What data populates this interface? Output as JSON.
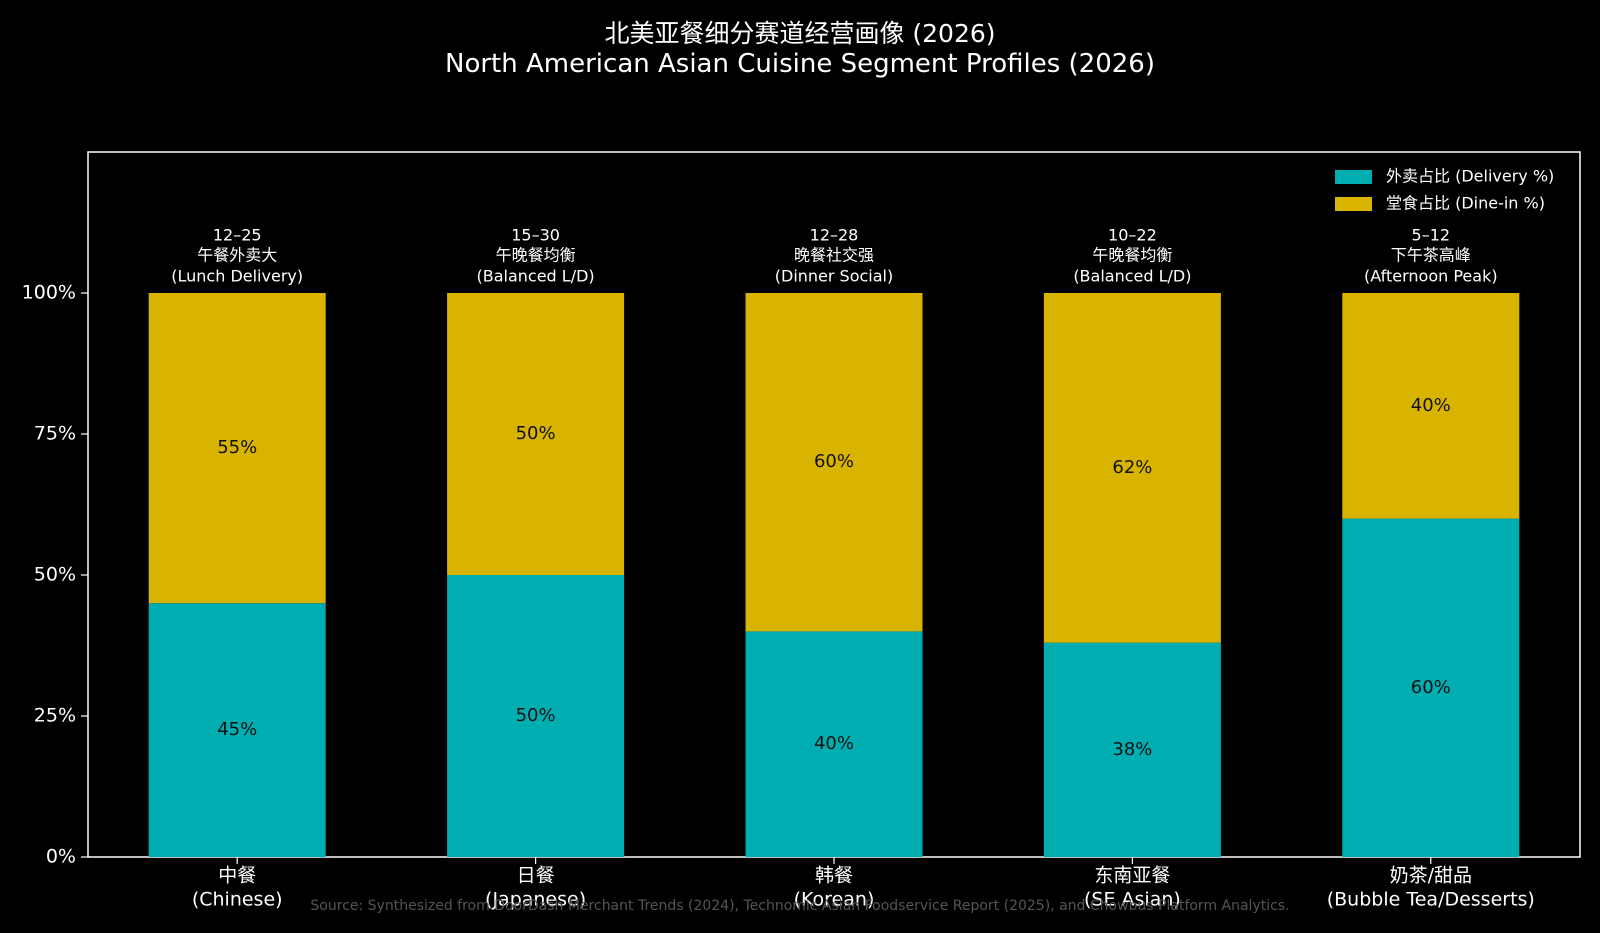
{
  "title_cn": "北美亚餐细分赛道经营画像 (2026)",
  "title_en": "North American Asian Cuisine Segment Profiles (2026)",
  "source": "Source: Synthesized from DoorDash Merchant Trends (2024), Technomic Asian Foodservice Report (2025), and Chowbus Platform Analytics.",
  "chart_data": {
    "type": "bar",
    "stacked": true,
    "categories": [
      [
        "中餐",
        "(Chinese)"
      ],
      [
        "日餐",
        "(Japanese)"
      ],
      [
        "韩餐",
        "(Korean)"
      ],
      [
        "东南亚餐",
        "(SE Asian)"
      ],
      [
        "奶茶/甜品",
        "(Bubble Tea/Desserts)"
      ]
    ],
    "series": [
      {
        "name": "外卖占比 (Delivery %)",
        "color": "#00adb0",
        "values": [
          45,
          50,
          40,
          38,
          60
        ],
        "labels": [
          "45%",
          "50%",
          "40%",
          "38%",
          "60%"
        ]
      },
      {
        "name": "堂食占比 (Dine-in %)",
        "color": "#d8b300",
        "values": [
          55,
          50,
          60,
          62,
          40
        ],
        "labels": [
          "55%",
          "50%",
          "60%",
          "62%",
          "40%"
        ]
      }
    ],
    "annotations": [
      [
        "12–25",
        "午餐外卖大",
        "(Lunch Delivery)"
      ],
      [
        "15–30",
        "午晚餐均衡",
        "(Balanced L/D)"
      ],
      [
        "12–28",
        "晚餐社交强",
        "(Dinner Social)"
      ],
      [
        "10–22",
        "午晚餐均衡",
        "(Balanced L/D)"
      ],
      [
        "5–12",
        "下午茶高峰",
        "(Afternoon Peak)"
      ]
    ],
    "yticks": [
      "0%",
      "25%",
      "50%",
      "75%",
      "100%"
    ],
    "ylim": [
      0,
      125
    ],
    "legend_position": "top-right",
    "grid": false
  }
}
